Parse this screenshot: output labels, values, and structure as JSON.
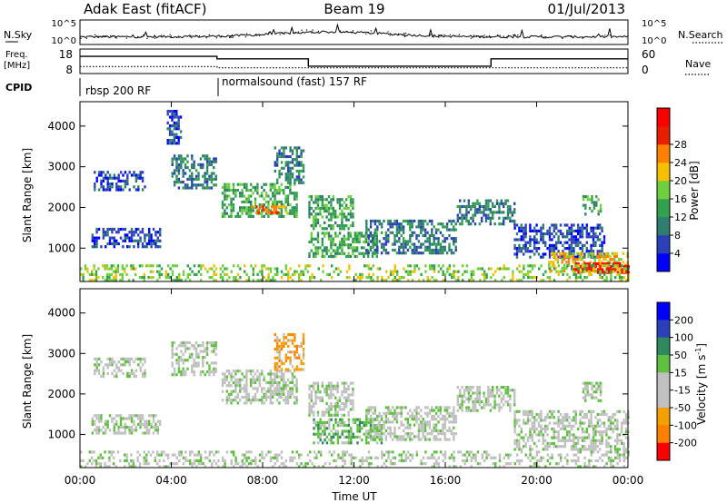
{
  "header": {
    "station": "Adak East (fitACF)",
    "beam": "Beam 19",
    "date": "01/Jul/2013"
  },
  "params_panel": {
    "nsky_label": "N.Sky",
    "nsearch_label": "N.Search",
    "freq_label_1": "Freq.",
    "freq_label_2": "[MHz]",
    "nave_label": "Nave",
    "cpid_label": "CPID",
    "nsky_ticks_left": [
      "10^5",
      "10^0"
    ],
    "nsky_ticks_right": [
      "10^5",
      "10^0"
    ],
    "freq_ticks": [
      "18",
      "8"
    ],
    "nave_ticks": [
      "60",
      "0"
    ],
    "cpid_segments": [
      {
        "label": "rbsp 200 RF",
        "start_hour": 0,
        "end_hour": 6
      },
      {
        "label": "normalsound (fast) 157 RF",
        "start_hour": 6,
        "end_hour": 24
      }
    ]
  },
  "chart_data": [
    {
      "type": "line",
      "name": "freq-nave",
      "x_unit": "hour UT",
      "freq_series": {
        "x": [
          0,
          6,
          6,
          10,
          10,
          18,
          18,
          24
        ],
        "values": [
          15,
          15,
          14,
          14,
          11,
          11,
          14,
          14
        ]
      },
      "nave_series": {
        "x": [
          0,
          6,
          6,
          24
        ],
        "values": [
          17,
          17,
          14,
          14
        ]
      },
      "freq_ylim": [
        8,
        18
      ],
      "nave_ylim": [
        0,
        60
      ]
    },
    {
      "type": "heatmap",
      "name": "power",
      "ylabel": "Slant Range [km]",
      "xlim_hours": [
        0,
        24
      ],
      "ylim_km": [
        180,
        4600
      ],
      "y_ticks": [
        "1000",
        "2000",
        "3000",
        "4000"
      ],
      "colorbar_label": "Power [dB]",
      "colorbar_ticks": [
        "4",
        "8",
        "12",
        "16",
        "20",
        "24",
        "28"
      ],
      "colorbar_colors": [
        "#0000ff",
        "#2a3fb8",
        "#2e7d6e",
        "#33a050",
        "#6fcf3f",
        "#f4c000",
        "#ff7f00",
        "#e81e00",
        "#ff0000"
      ],
      "regions": [
        {
          "t0": 0.5,
          "t1": 3.5,
          "r0": 1050,
          "r1": 1500,
          "level": 1
        },
        {
          "t0": 0.6,
          "t1": 2.8,
          "r0": 2400,
          "r1": 2900,
          "level": 1
        },
        {
          "t0": 3.8,
          "t1": 4.4,
          "r0": 3600,
          "r1": 4400,
          "level": 1
        },
        {
          "t0": 4.0,
          "t1": 6.0,
          "r0": 2500,
          "r1": 3300,
          "level": 2
        },
        {
          "t0": 6.2,
          "t1": 9.5,
          "r0": 1800,
          "r1": 2600,
          "level": 3
        },
        {
          "t0": 7.5,
          "t1": 9.2,
          "r0": 1850,
          "r1": 2050,
          "level": 6
        },
        {
          "t0": 8.5,
          "t1": 9.8,
          "r0": 2600,
          "r1": 3500,
          "level": 2
        },
        {
          "t0": 10.0,
          "t1": 12.0,
          "r0": 1500,
          "r1": 2300,
          "level": 3
        },
        {
          "t0": 10.0,
          "t1": 13.0,
          "r0": 800,
          "r1": 1400,
          "level": 3
        },
        {
          "t0": 12.5,
          "t1": 16.5,
          "r0": 900,
          "r1": 1700,
          "level": 2
        },
        {
          "t0": 16.5,
          "t1": 19.0,
          "r0": 1600,
          "r1": 2200,
          "level": 2
        },
        {
          "t0": 19.0,
          "t1": 23.0,
          "r0": 800,
          "r1": 1600,
          "level": 1
        },
        {
          "t0": 20.5,
          "t1": 24.0,
          "r0": 400,
          "r1": 900,
          "level": 5
        },
        {
          "t0": 21.5,
          "t1": 24.0,
          "r0": 400,
          "r1": 650,
          "level": 8
        },
        {
          "t0": 22.0,
          "t1": 22.8,
          "r0": 1800,
          "r1": 2300,
          "level": 3
        },
        {
          "t0": 0.0,
          "t1": 24.0,
          "r0": 200,
          "r1": 600,
          "level": 4
        }
      ]
    },
    {
      "type": "heatmap",
      "name": "velocity",
      "xlabel": "Time UT",
      "ylabel": "Slant Range [km]",
      "xlim_hours": [
        0,
        24
      ],
      "ylim_km": [
        180,
        4600
      ],
      "x_ticks": [
        "00:00",
        "04:00",
        "08:00",
        "12:00",
        "16:00",
        "20:00",
        "00:00"
      ],
      "y_ticks": [
        "1000",
        "2000",
        "3000",
        "4000"
      ],
      "colorbar_label": "Velocity [m s",
      "colorbar_label_sup": "-1",
      "colorbar_label_end": "]",
      "colorbar_ticks": [
        "200",
        "100",
        "50",
        "15",
        "-15",
        "-50",
        "-100",
        "-200"
      ],
      "colorbar_colors": [
        "#0000ff",
        "#2a3fb8",
        "#2e8a5e",
        "#5fc040",
        "#c0c0c0",
        "#c0c0c0",
        "#f4a000",
        "#ff7f00",
        "#ff0000"
      ],
      "regions": [
        {
          "t0": 0.5,
          "t1": 3.5,
          "r0": 1050,
          "r1": 1500,
          "level": 4
        },
        {
          "t0": 0.6,
          "t1": 2.8,
          "r0": 2400,
          "r1": 2900,
          "level": 4
        },
        {
          "t0": 4.0,
          "t1": 6.0,
          "r0": 2500,
          "r1": 3300,
          "level": 4
        },
        {
          "t0": 6.2,
          "t1": 9.5,
          "r0": 1800,
          "r1": 2600,
          "level": 4
        },
        {
          "t0": 8.5,
          "t1": 9.8,
          "r0": 2600,
          "r1": 3500,
          "level": 6
        },
        {
          "t0": 10.0,
          "t1": 12.0,
          "r0": 1500,
          "r1": 2300,
          "level": 4
        },
        {
          "t0": 10.2,
          "t1": 13.2,
          "r0": 800,
          "r1": 1400,
          "level": 3
        },
        {
          "t0": 12.5,
          "t1": 16.5,
          "r0": 900,
          "r1": 1700,
          "level": 4
        },
        {
          "t0": 16.5,
          "t1": 19.0,
          "r0": 1600,
          "r1": 2200,
          "level": 4
        },
        {
          "t0": 19.0,
          "t1": 24.0,
          "r0": 600,
          "r1": 1600,
          "level": 4
        },
        {
          "t0": 22.0,
          "t1": 22.8,
          "r0": 1800,
          "r1": 2300,
          "level": 4
        },
        {
          "t0": 0.0,
          "t1": 24.0,
          "r0": 200,
          "r1": 600,
          "level": 4
        }
      ]
    }
  ]
}
